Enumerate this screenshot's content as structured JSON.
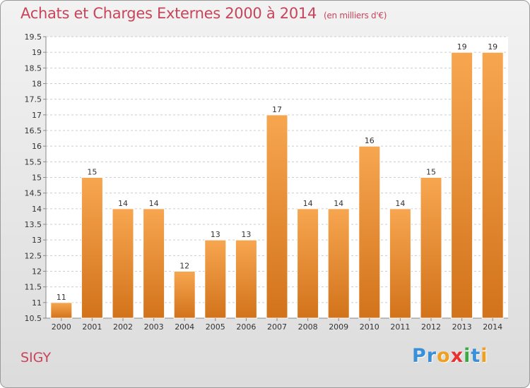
{
  "chart_data": {
    "type": "bar",
    "title": "Achats et Charges Externes 2000 à 2014",
    "subtitle": "(en milliers d'€)",
    "categories": [
      "2000",
      "2001",
      "2002",
      "2003",
      "2004",
      "2005",
      "2006",
      "2007",
      "2008",
      "2009",
      "2010",
      "2011",
      "2012",
      "2013",
      "2014"
    ],
    "values": [
      11,
      15,
      14,
      14,
      12,
      13,
      13,
      17,
      14,
      14,
      16,
      14,
      15,
      19,
      19
    ],
    "ylim": [
      10.5,
      19.5
    ],
    "yticks": [
      "10.5",
      "11",
      "11.5",
      "12",
      "12.5",
      "13",
      "13.5",
      "14",
      "14.5",
      "15",
      "15.5",
      "16",
      "16.5",
      "17",
      "17.5",
      "18",
      "18.5",
      "19",
      "19.5"
    ],
    "grid": true,
    "bar_color_top": "#f7a650",
    "bar_color_bottom": "#d2731b"
  },
  "commune": "SIGY",
  "logo": {
    "letters": [
      "P",
      "r",
      "o",
      "x",
      "i",
      "t",
      "i"
    ],
    "colors": [
      "#3a8fd8",
      "#3a8fd8",
      "#f0a020",
      "#e83030",
      "#3aaa44",
      "#3a8fd8",
      "#f0a020"
    ]
  }
}
